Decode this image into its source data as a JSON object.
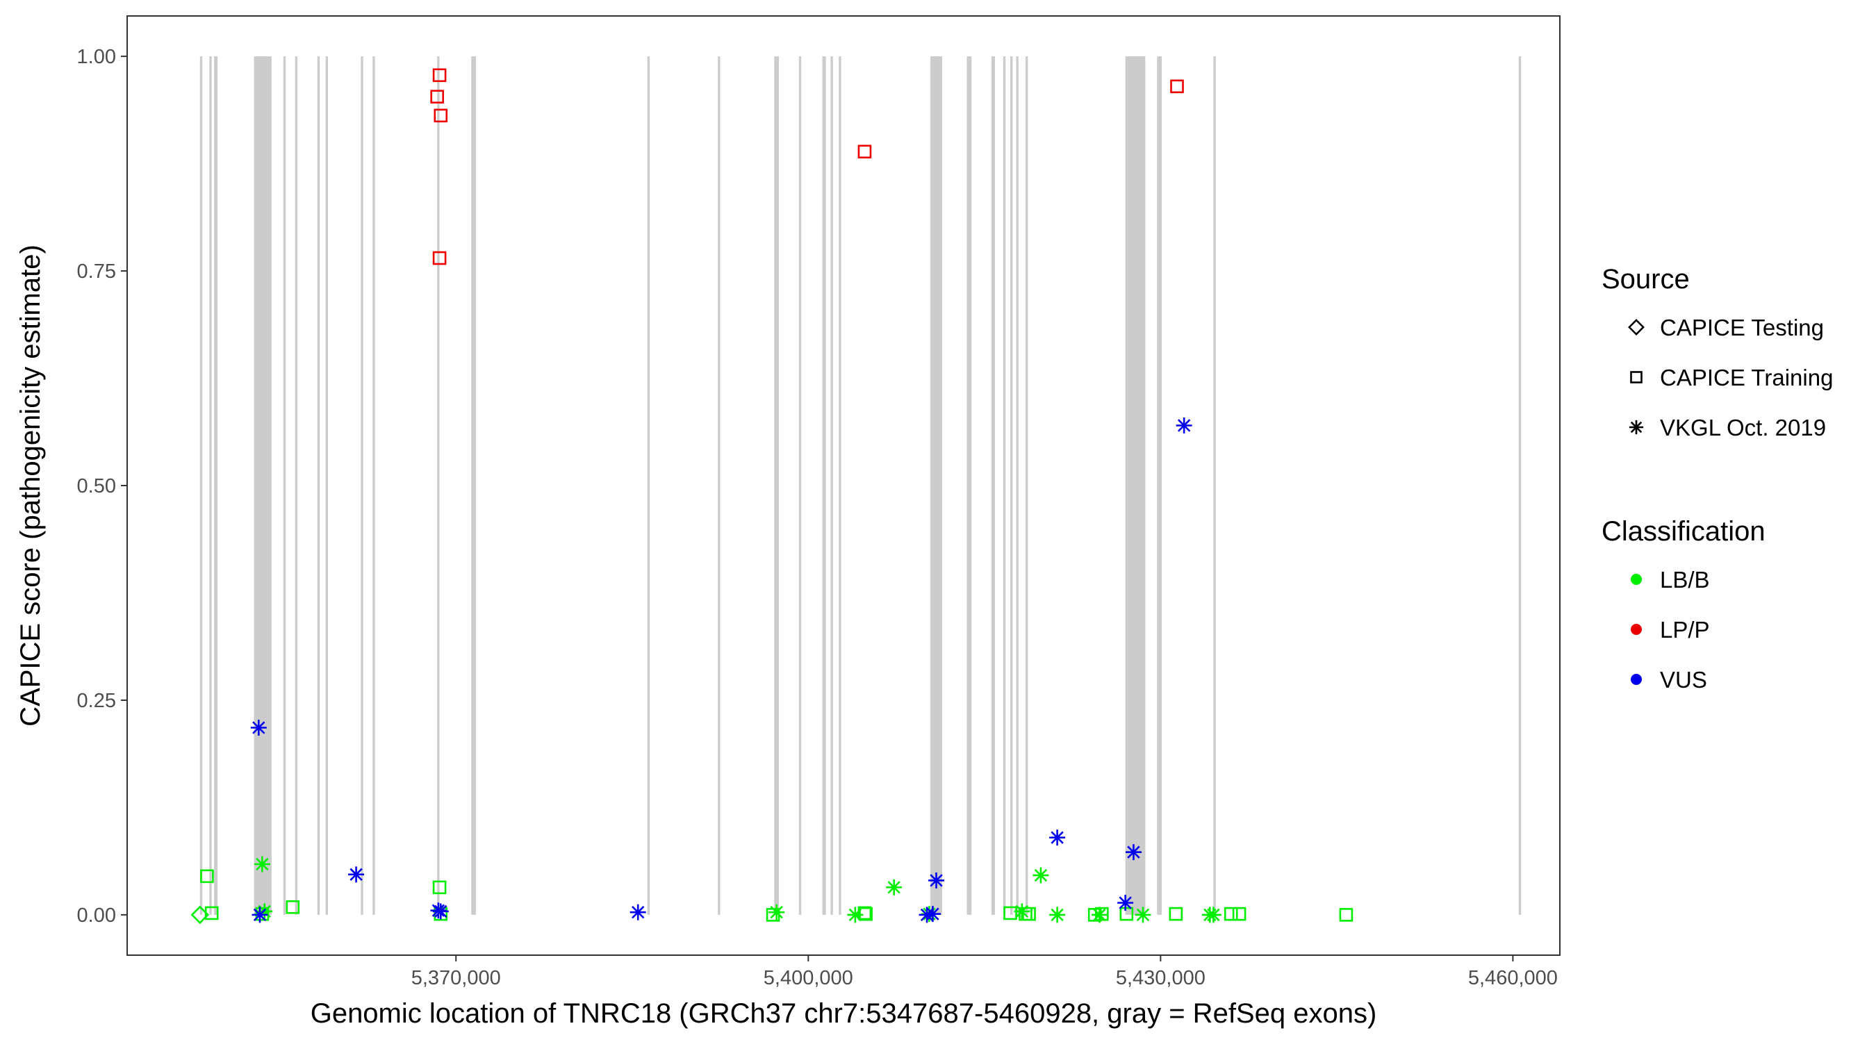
{
  "chart_data": {
    "type": "scatter",
    "xlabel": "Genomic location of TNRC18 (GRCh37 chr7:5347687-5460928, gray = RefSeq exons)",
    "ylabel": "CAPICE score (pathogenicity estimate)",
    "xlim": [
      5342000,
      5464000
    ],
    "ylim": [
      -0.047,
      1.047
    ],
    "x_ticks": [
      5370000,
      5400000,
      5430000,
      5460000
    ],
    "x_tick_labels": [
      "5,370,000",
      "5,400,000",
      "5,430,000",
      "5,460,000"
    ],
    "y_ticks": [
      0,
      0.25,
      0.5,
      0.75,
      1.0
    ],
    "y_tick_labels": [
      "0.00",
      "0.25",
      "0.50",
      "0.75",
      "1.00"
    ],
    "grid": false,
    "legend_position": "right",
    "exons": [
      [
        5348200,
        5348400
      ],
      [
        5349000,
        5349200
      ],
      [
        5349400,
        5349700
      ],
      [
        5352800,
        5354300
      ],
      [
        5355300,
        5355500
      ],
      [
        5356300,
        5356500
      ],
      [
        5358200,
        5358400
      ],
      [
        5358900,
        5359100
      ],
      [
        5361900,
        5362100
      ],
      [
        5362900,
        5363100
      ],
      [
        5368400,
        5368600
      ],
      [
        5371300,
        5371700
      ],
      [
        5386300,
        5386500
      ],
      [
        5392300,
        5392500
      ],
      [
        5397100,
        5397500
      ],
      [
        5399200,
        5399400
      ],
      [
        5401200,
        5401500
      ],
      [
        5401900,
        5402100
      ],
      [
        5402600,
        5402800
      ],
      [
        5410400,
        5411400
      ],
      [
        5413500,
        5413900
      ],
      [
        5415600,
        5415900
      ],
      [
        5416600,
        5416800
      ],
      [
        5417200,
        5417400
      ],
      [
        5417700,
        5417900
      ],
      [
        5418500,
        5418700
      ],
      [
        5427000,
        5428700
      ],
      [
        5429700,
        5430100
      ],
      [
        5434500,
        5434700
      ],
      [
        5460500,
        5460700
      ]
    ],
    "legend": {
      "source_title": "Source",
      "source_items": [
        {
          "label": "CAPICE Testing",
          "shape": "diamond"
        },
        {
          "label": "CAPICE Training",
          "shape": "square"
        },
        {
          "label": "VKGL Oct. 2019",
          "shape": "asterisk"
        }
      ],
      "class_title": "Classification",
      "class_items": [
        {
          "label": "LB/B",
          "color": "#00ee00"
        },
        {
          "label": "LP/P",
          "color": "#ee0000"
        },
        {
          "label": "VUS",
          "color": "#0000ee"
        }
      ]
    },
    "series": [
      {
        "source": "CAPICE Testing",
        "shape": "diamond",
        "classification": "LB/B",
        "color": "#00ee00",
        "x": [
          5348200
        ],
        "y": [
          0.0
        ]
      },
      {
        "source": "CAPICE Training",
        "shape": "square",
        "classification": "LB/B",
        "color": "#00ee00",
        "x": [
          5348800,
          5349200,
          5353500,
          5356100,
          5368600,
          5368700,
          5397000,
          5404800,
          5404900,
          5417200,
          5418500,
          5418800,
          5424400,
          5425000,
          5427100,
          5431300,
          5436000,
          5436700,
          5445800
        ],
        "y": [
          0.045,
          0.002,
          0.001,
          0.009,
          0.032,
          0.001,
          0.0,
          0.002,
          0.001,
          0.002,
          0.001,
          0.001,
          0.0,
          0.001,
          0.001,
          0.001,
          0.001,
          0.001,
          0.0
        ]
      },
      {
        "source": "CAPICE Training",
        "shape": "square",
        "classification": "LP/P",
        "color": "#ee0000",
        "x": [
          5368400,
          5368600,
          5368700,
          5368600,
          5404800,
          5431400
        ],
        "y": [
          0.953,
          0.978,
          0.931,
          0.765,
          0.889,
          0.965
        ]
      },
      {
        "source": "VKGL Oct. 2019",
        "shape": "asterisk",
        "classification": "LB/B",
        "color": "#00ee00",
        "x": [
          5353500,
          5353700,
          5397300,
          5404000,
          5407300,
          5410300,
          5418200,
          5419800,
          5421200,
          5424800,
          5428500,
          5434200,
          5434500
        ],
        "y": [
          0.059,
          0.004,
          0.003,
          0.0,
          0.032,
          0.001,
          0.004,
          0.046,
          0.0,
          0.0,
          0.0,
          0.0,
          0.0
        ]
      },
      {
        "source": "VKGL Oct. 2019",
        "shape": "asterisk",
        "classification": "VUS",
        "color": "#0000ee",
        "x": [
          5353200,
          5353300,
          5361500,
          5368500,
          5368700,
          5385500,
          5410100,
          5410600,
          5410900,
          5421200,
          5427000,
          5427700,
          5432000
        ],
        "y": [
          0.218,
          0.0,
          0.047,
          0.005,
          0.004,
          0.003,
          0.0,
          0.001,
          0.04,
          0.09,
          0.014,
          0.073,
          0.57
        ]
      }
    ]
  }
}
